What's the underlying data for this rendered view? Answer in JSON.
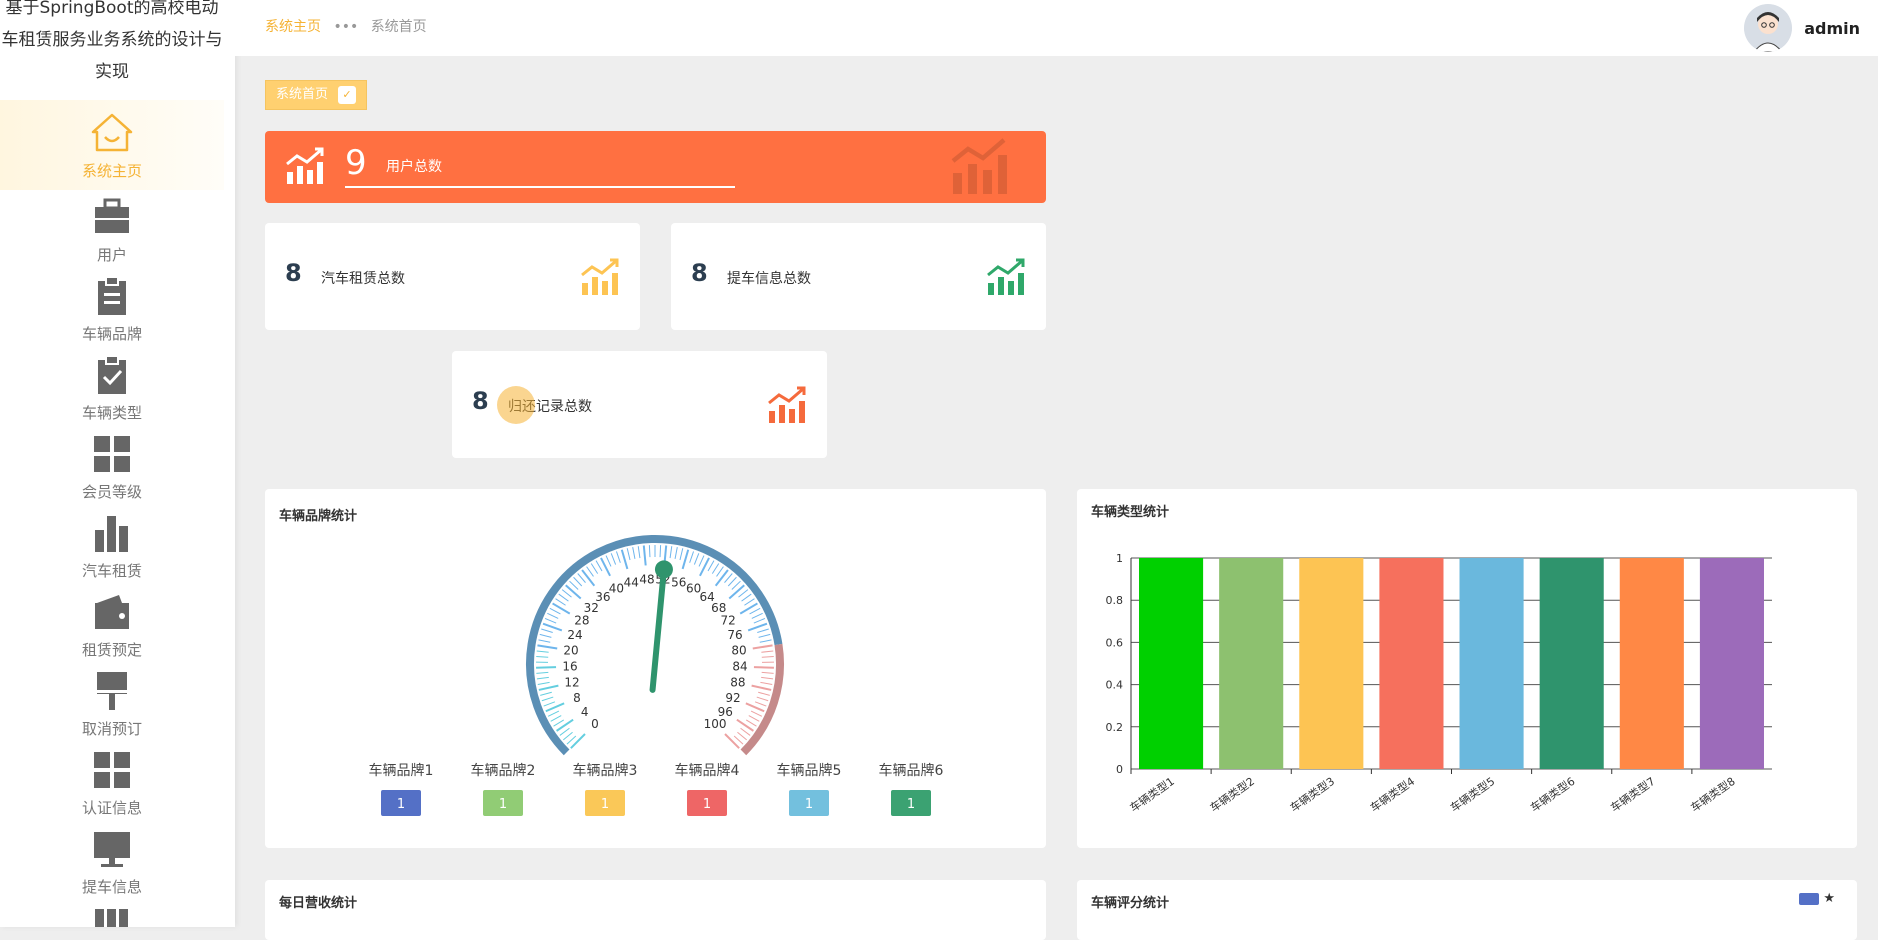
{
  "app": {
    "title": "基于SpringBoot的高校电动车租赁服务业务系统的设计与实现"
  },
  "sidebar": {
    "items": [
      {
        "label": "系统主页",
        "icon": "home-icon",
        "active": true
      },
      {
        "label": "用户",
        "icon": "briefcase-icon"
      },
      {
        "label": "车辆品牌",
        "icon": "clipboard-icon"
      },
      {
        "label": "车辆类型",
        "icon": "clipboard-check-icon"
      },
      {
        "label": "会员等级",
        "icon": "grid-icon"
      },
      {
        "label": "汽车租赁",
        "icon": "bar-chart-icon"
      },
      {
        "label": "租赁预定",
        "icon": "wallet-icon"
      },
      {
        "label": "取消预订",
        "icon": "pin-icon"
      },
      {
        "label": "认证信息",
        "icon": "grid-icon"
      },
      {
        "label": "提车信息",
        "icon": "monitor-icon"
      }
    ]
  },
  "header": {
    "breadcrumb_home": "系统主页",
    "breadcrumb_sep": "•••",
    "breadcrumb_current": "系统首页",
    "username": "admin"
  },
  "tab": {
    "label": "系统首页"
  },
  "stats": {
    "users": {
      "value": "9",
      "label": "用户总数"
    },
    "rental": {
      "value": "8",
      "label": "汽车租赁总数"
    },
    "pickup": {
      "value": "8",
      "label": "提车信息总数"
    },
    "return": {
      "value": "8",
      "label": "归还记录总数"
    }
  },
  "panels": {
    "brand": "车辆品牌统计",
    "type": "车辆类型统计",
    "revenue": "每日营收统计",
    "rating": "车辆评分统计",
    "rating_legend": "★"
  },
  "colors": {
    "accent": "#f5b335",
    "banner": "#ff7041"
  },
  "chart_data": [
    {
      "type": "gauge",
      "min": 0,
      "max": 100,
      "ticks": [
        "0",
        "4",
        "8",
        "12",
        "16",
        "20",
        "24",
        "28",
        "32",
        "36",
        "40",
        "44",
        "48",
        "52",
        "56",
        "60",
        "64",
        "68",
        "72",
        "76",
        "80",
        "84",
        "88",
        "92",
        "96",
        "100"
      ],
      "value": 52,
      "legend": [
        {
          "name": "车辆品牌1",
          "value": 1,
          "color": "#5470c6"
        },
        {
          "name": "车辆品牌2",
          "value": 1,
          "color": "#91cc75"
        },
        {
          "name": "车辆品牌3",
          "value": 1,
          "color": "#fac858"
        },
        {
          "name": "车辆品牌4",
          "value": 1,
          "color": "#ee6666"
        },
        {
          "name": "车辆品牌5",
          "value": 1,
          "color": "#73c0de"
        },
        {
          "name": "车辆品牌6",
          "value": 1,
          "color": "#3ba272"
        }
      ]
    },
    {
      "type": "bar",
      "categories": [
        "车辆类型1",
        "车辆类型2",
        "车辆类型3",
        "车辆类型4",
        "车辆类型5",
        "车辆类型6",
        "车辆类型7",
        "车辆类型8"
      ],
      "values": [
        1,
        1,
        1,
        1,
        1,
        1,
        1,
        1
      ],
      "colors": [
        "#00d000",
        "#8dc16f",
        "#fdc453",
        "#f6705d",
        "#6ab8dd",
        "#2f946d",
        "#ff8845",
        "#9c6bba"
      ],
      "yticks": [
        "0",
        "0.2",
        "0.4",
        "0.6",
        "0.8",
        "1"
      ],
      "ylim": [
        0,
        1
      ]
    }
  ]
}
